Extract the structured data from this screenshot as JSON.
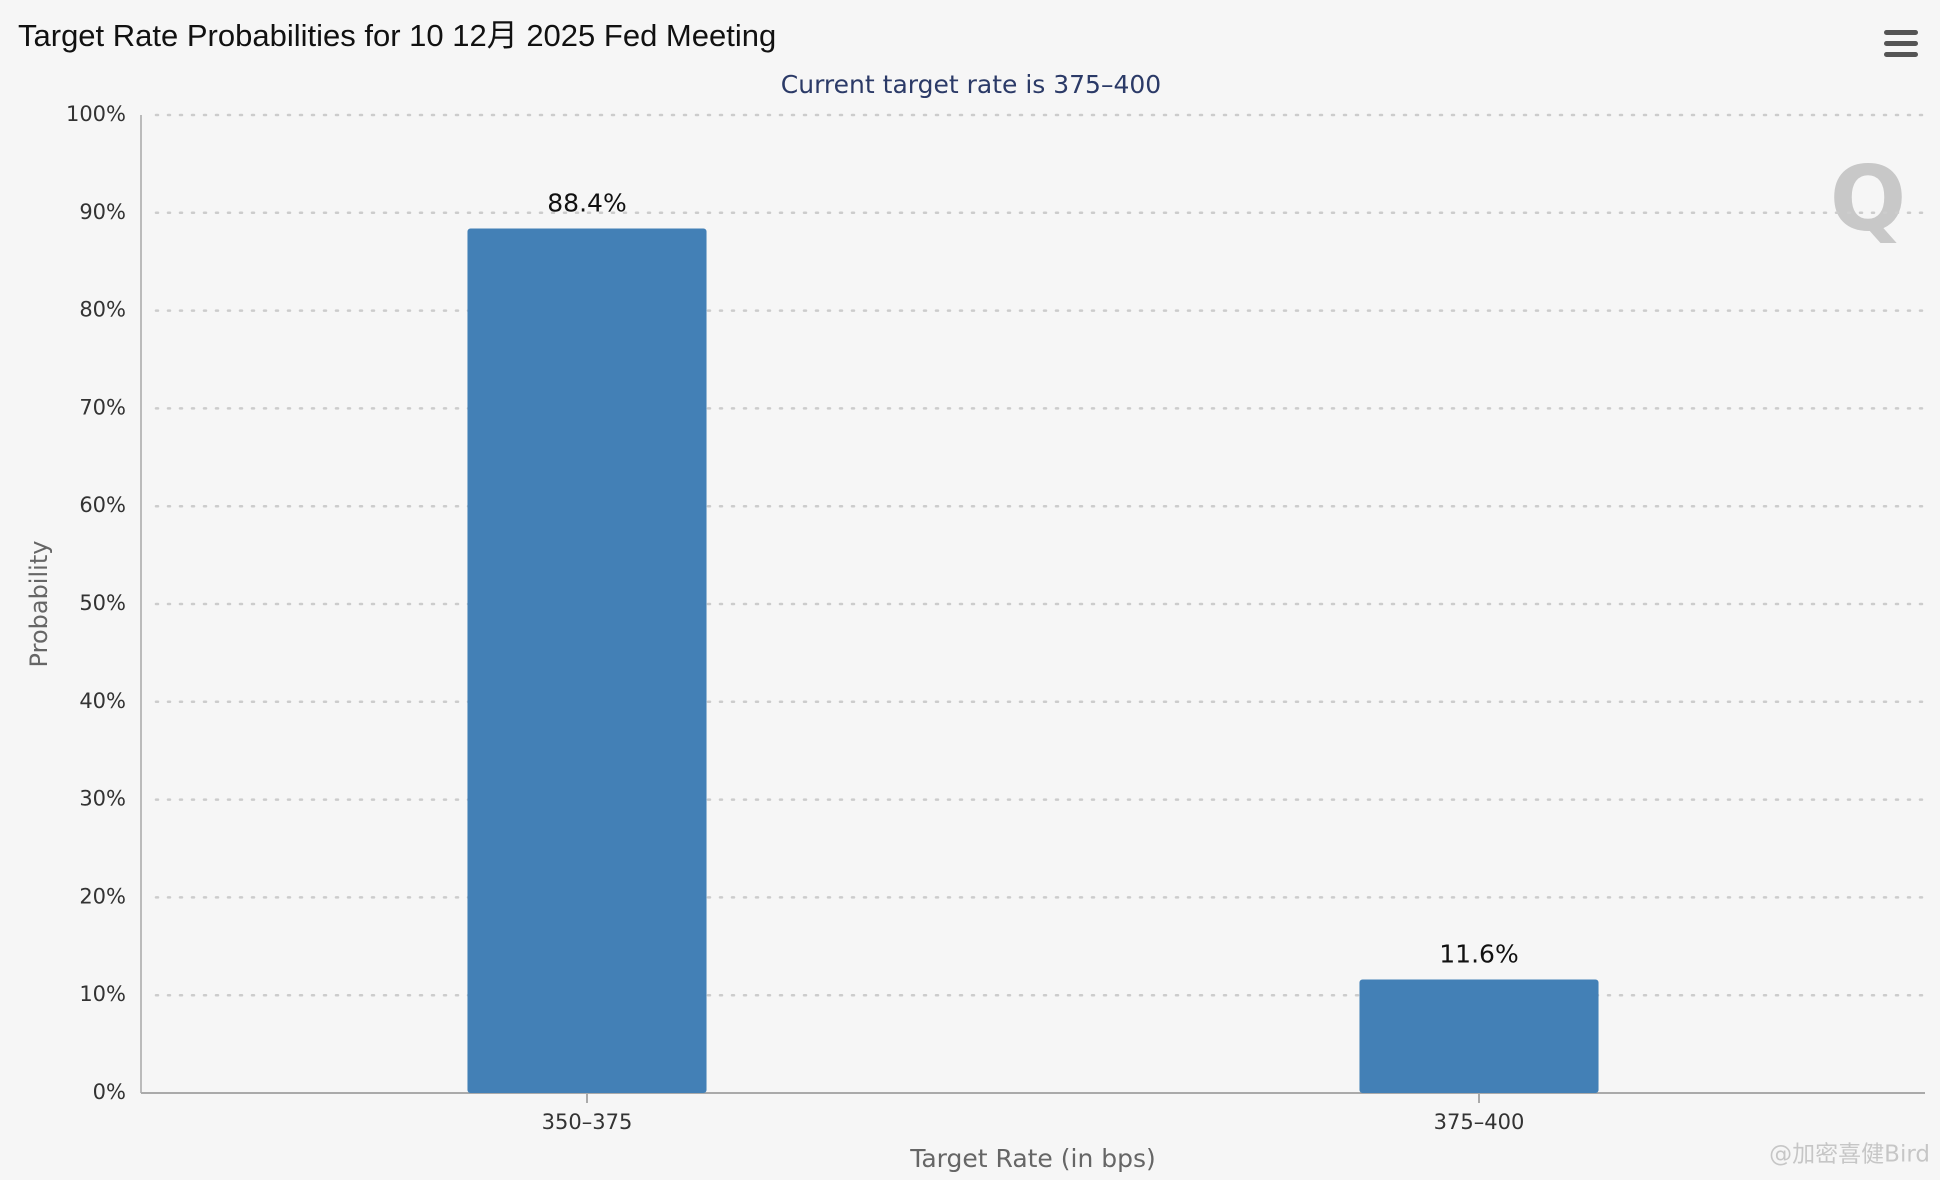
{
  "chart_data": {
    "type": "bar",
    "title": "Target Rate Probabilities for 10 12月 2025 Fed Meeting",
    "subtitle": "Current target rate is 375–400",
    "x_label": "Target Rate (in bps)",
    "y_label": "Probability",
    "categories": [
      "350–375",
      "375–400"
    ],
    "values": [
      88.4,
      11.6
    ],
    "value_labels": [
      "88.4%",
      "11.6%"
    ],
    "color": "#4380b6",
    "ylim": [
      0,
      100
    ],
    "yticks": [
      {
        "value": 0,
        "label": "0%"
      },
      {
        "value": 10,
        "label": "10%"
      },
      {
        "value": 20,
        "label": "20%"
      },
      {
        "value": 30,
        "label": "30%"
      },
      {
        "value": 40,
        "label": "40%"
      },
      {
        "value": 50,
        "label": "50%"
      },
      {
        "value": 60,
        "label": "60%"
      },
      {
        "value": 70,
        "label": "70%"
      },
      {
        "value": 80,
        "label": "80%"
      },
      {
        "value": 90,
        "label": "90%"
      },
      {
        "value": 100,
        "label": "100%"
      }
    ],
    "grid": true,
    "watermark": "@加密喜健Bird"
  }
}
